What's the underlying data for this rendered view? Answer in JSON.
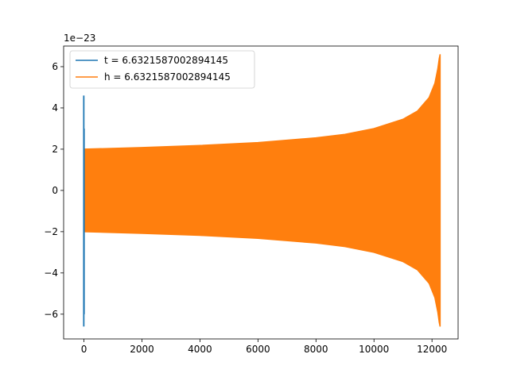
{
  "chart_data": {
    "type": "line",
    "title": "",
    "xlabel": "",
    "ylabel": "",
    "y_offset_text": "1e−23",
    "xlim": [
      -700,
      12900
    ],
    "ylim": [
      -7.2,
      7.0
    ],
    "x_ticks": [
      0,
      2000,
      4000,
      6000,
      8000,
      10000,
      12000
    ],
    "x_tick_labels": [
      "0",
      "2000",
      "4000",
      "6000",
      "8000",
      "10000",
      "12000"
    ],
    "y_ticks": [
      -6,
      -4,
      -2,
      0,
      2,
      4,
      6
    ],
    "y_tick_labels": [
      "−6",
      "−4",
      "−2",
      "0",
      "2",
      "4",
      "6"
    ],
    "grid": false,
    "legend_position": "upper-left",
    "series": [
      {
        "name": "t = 6.6321587002894145",
        "color": "#1f77b4",
        "description": "vertical spike at x≈0",
        "segments": [
          {
            "x": -5,
            "y_min": -6.6,
            "y_max": 4.6
          },
          {
            "x": 5,
            "y_min": -6.0,
            "y_max": 3.0
          }
        ]
      },
      {
        "name": "h = 6.6321587002894145",
        "color": "#ff7f0e",
        "description": "oscillation envelope (upper = +amp, lower = −amp)",
        "envelope_x": [
          0,
          2000,
          4000,
          6000,
          8000,
          9000,
          10000,
          11000,
          11500,
          11900,
          12100,
          12200,
          12250,
          12280
        ],
        "envelope_amp": [
          2.0,
          2.08,
          2.18,
          2.32,
          2.55,
          2.72,
          3.0,
          3.45,
          3.85,
          4.5,
          5.2,
          5.9,
          6.4,
          6.6
        ]
      }
    ]
  }
}
